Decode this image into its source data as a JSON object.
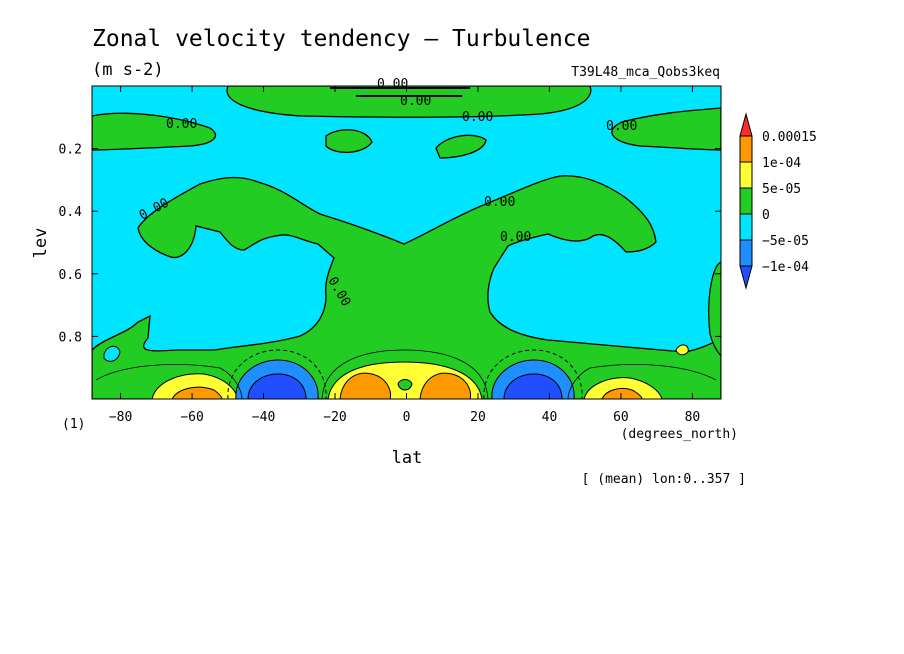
{
  "chart_data": {
    "type": "heatmap",
    "title": "Zonal velocity tendency — Turbulence",
    "units": "(m s-2)",
    "run_id": "T39L48_mca_Qobs3keq",
    "xlabel": "lat",
    "x_units": "(degrees_north)",
    "ylabel": "lev",
    "y_units": "(1)",
    "averaging_note": "[ (mean) lon:0..357 ]",
    "xlim": [
      -88,
      88
    ],
    "ylim": [
      1.0,
      0.0
    ],
    "y_inverted": true,
    "x_ticks": [
      -80,
      -60,
      -40,
      -20,
      0,
      20,
      40,
      60,
      80
    ],
    "x_tick_labels": [
      "−80",
      "−60",
      "−40",
      "−20",
      "0",
      "20",
      "40",
      "60",
      "80"
    ],
    "y_ticks": [
      0.2,
      0.4,
      0.6,
      0.8
    ],
    "y_tick_labels": [
      "0.2",
      "0.4",
      "0.6",
      "0.8"
    ],
    "colorbar": {
      "levels": [
        "0.00015",
        "1e-04",
        "5e-05",
        "0",
        "−5e-05",
        "−1e-04"
      ],
      "colors": [
        "#ff2a2a",
        "#ff9900",
        "#ffff33",
        "#22cc22",
        "#00e5ff",
        "#1f8fff",
        "#1f4fff"
      ]
    },
    "background_color": "#00e5ff",
    "contour_labels": [
      "0.00",
      "0.00",
      "0.00",
      "0.00",
      "0.00",
      "0.00",
      "0.00",
      "0.00",
      "0.00"
    ],
    "regions": [
      {
        "kind": "positive",
        "color": "#22cc22",
        "lat": [
          -60,
          60
        ],
        "lev": [
          0.0,
          0.05
        ],
        "min": 0,
        "max": 5e-05
      },
      {
        "kind": "positive",
        "color": "#22cc22",
        "lat": [
          -85,
          -50
        ],
        "lev": [
          0.07,
          0.2
        ],
        "min": 0,
        "max": 5e-05
      },
      {
        "kind": "positive",
        "color": "#22cc22",
        "lat": [
          50,
          88
        ],
        "lev": [
          0.07,
          0.2
        ],
        "min": 0,
        "max": 5e-05
      },
      {
        "kind": "positive",
        "color": "#22cc22",
        "lat": [
          -85,
          88
        ],
        "lev": [
          0.3,
          1.0
        ],
        "min": 0,
        "max": 5e-05
      },
      {
        "kind": "positive",
        "color": "#ffff33",
        "lat": [
          -70,
          -50
        ],
        "lev": [
          0.93,
          1.0
        ],
        "min": 5e-05,
        "max": 0.0001
      },
      {
        "kind": "positive",
        "color": "#ffff33",
        "lat": [
          50,
          72
        ],
        "lev": [
          0.93,
          1.0
        ],
        "min": 5e-05,
        "max": 0.0001
      },
      {
        "kind": "positive",
        "color": "#ffff33",
        "lat": [
          -25,
          25
        ],
        "lev": [
          0.88,
          1.0
        ],
        "min": 5e-05,
        "max": 0.0001
      },
      {
        "kind": "positive",
        "color": "#ff9900",
        "lat": [
          -18,
          -6
        ],
        "lev": [
          0.93,
          1.0
        ],
        "min": 0.0001,
        "max": 0.00015
      },
      {
        "kind": "positive",
        "color": "#ff9900",
        "lat": [
          6,
          18
        ],
        "lev": [
          0.93,
          1.0
        ],
        "min": 0.0001,
        "max": 0.00015
      },
      {
        "kind": "positive",
        "color": "#ff9900",
        "lat": [
          -66,
          -55
        ],
        "lev": [
          0.96,
          1.0
        ],
        "min": 0.0001,
        "max": 0.00015
      },
      {
        "kind": "negative",
        "color": "#1f8fff",
        "lat": [
          -48,
          -25
        ],
        "lev": [
          0.88,
          1.0
        ],
        "min": -0.0001,
        "max": -5e-05
      },
      {
        "kind": "negative",
        "color": "#1f4fff",
        "lat": [
          -42,
          -30
        ],
        "lev": [
          0.92,
          1.0
        ],
        "min": -0.00015,
        "max": -0.0001
      },
      {
        "kind": "negative",
        "color": "#1f8fff",
        "lat": [
          25,
          48
        ],
        "lev": [
          0.88,
          1.0
        ],
        "min": -0.0001,
        "max": -5e-05
      },
      {
        "kind": "negative",
        "color": "#1f4fff",
        "lat": [
          30,
          42
        ],
        "lev": [
          0.92,
          1.0
        ],
        "min": -0.00015,
        "max": -0.0001
      }
    ]
  }
}
